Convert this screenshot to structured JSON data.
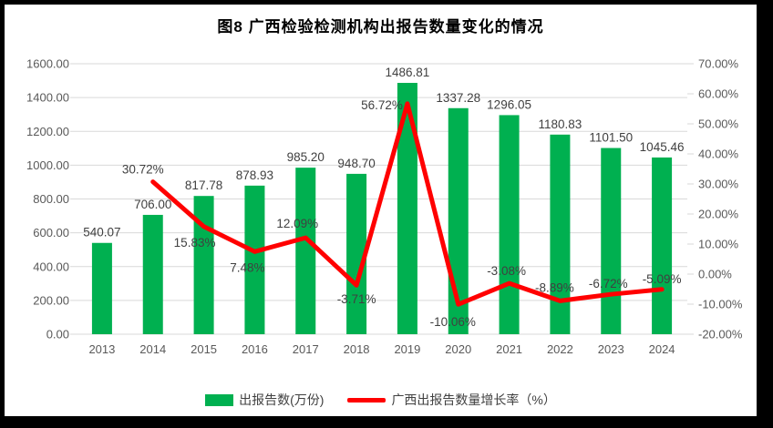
{
  "chart_data": {
    "type": "combo",
    "title": "图8  广西检验检测机构出报告数量变化的情况",
    "categories": [
      "2013",
      "2014",
      "2015",
      "2016",
      "2017",
      "2018",
      "2019",
      "2020",
      "2021",
      "2022",
      "2023",
      "2024"
    ],
    "series": [
      {
        "name": "出报告数(万份)",
        "type": "bar",
        "axis": "left",
        "values": [
          540.07,
          706.0,
          817.78,
          878.93,
          985.2,
          948.7,
          1486.81,
          1337.28,
          1296.05,
          1180.83,
          1101.5,
          1045.46
        ]
      },
      {
        "name": "广西出报告数量增长率（%）",
        "type": "line",
        "axis": "right",
        "values": [
          null,
          30.72,
          15.83,
          7.48,
          12.09,
          -3.71,
          56.72,
          -10.06,
          -3.08,
          -8.89,
          -6.72,
          -5.09
        ]
      }
    ],
    "left_axis": {
      "min": 0,
      "max": 1600,
      "step": 200,
      "ticks": [
        "1600.00",
        "1400.00",
        "1200.00",
        "1000.00",
        "800.00",
        "600.00",
        "400.00",
        "200.00",
        "0.00"
      ]
    },
    "right_axis": {
      "min": -20,
      "max": 70,
      "step": 10,
      "ticks": [
        "70.00%",
        "60.00%",
        "50.00%",
        "40.00%",
        "30.00%",
        "20.00%",
        "10.00%",
        "0.00%",
        "-10.00%",
        "-20.00%"
      ]
    },
    "grid": true,
    "legend_position": "bottom"
  },
  "colors": {
    "bar": "#00B050",
    "line": "#FF0000",
    "gridline": "#D9D9D9",
    "axis_text": "#595959",
    "data_label": "#404040",
    "title_text": "#000000",
    "panel_bg": "#FFFFFF",
    "frame_bg": "#000000"
  }
}
